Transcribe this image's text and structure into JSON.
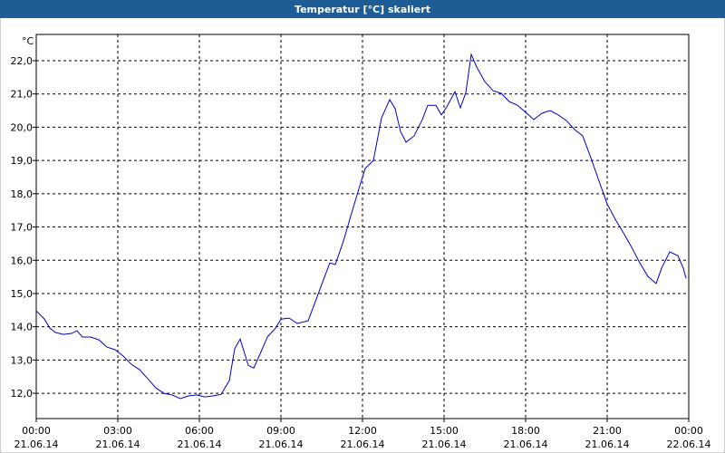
{
  "chart_data": {
    "type": "line",
    "title": "Temperatur [°C] skaliert",
    "y_unit": "°C",
    "x": [
      0,
      0.3,
      0.5,
      0.7,
      1.0,
      1.3,
      1.5,
      1.7,
      2.0,
      2.3,
      2.6,
      2.9,
      3.2,
      3.5,
      3.8,
      4.1,
      4.4,
      4.7,
      5.0,
      5.3,
      5.6,
      5.9,
      6.2,
      6.5,
      6.8,
      7.1,
      7.3,
      7.5,
      7.8,
      8.0,
      8.2,
      8.5,
      8.8,
      9.0,
      9.3,
      9.6,
      10.0,
      10.3,
      10.6,
      10.8,
      11.0,
      11.3,
      11.6,
      11.9,
      12.1,
      12.4,
      12.7,
      13.0,
      13.2,
      13.4,
      13.6,
      13.9,
      14.2,
      14.4,
      14.7,
      14.9,
      15.1,
      15.4,
      15.6,
      15.8,
      16.0,
      16.2,
      16.5,
      16.8,
      17.1,
      17.4,
      17.7,
      18.0,
      18.3,
      18.6,
      18.9,
      19.2,
      19.5,
      19.8,
      20.1,
      20.4,
      20.7,
      21.0,
      21.3,
      21.6,
      21.9,
      22.2,
      22.5,
      22.8,
      23.0,
      23.3,
      23.6,
      23.8,
      23.9
    ],
    "series": [
      {
        "name": "Temperatur",
        "color": "#0000cc",
        "values": [
          14.48,
          14.23,
          13.96,
          13.83,
          13.77,
          13.8,
          13.88,
          13.69,
          13.69,
          13.61,
          13.39,
          13.31,
          13.12,
          12.87,
          12.71,
          12.44,
          12.16,
          12.0,
          11.95,
          11.84,
          11.92,
          11.95,
          11.89,
          11.92,
          11.97,
          12.38,
          13.34,
          13.63,
          12.84,
          12.76,
          13.12,
          13.69,
          13.96,
          14.23,
          14.26,
          14.1,
          14.18,
          14.83,
          15.49,
          15.92,
          15.87,
          16.58,
          17.42,
          18.24,
          18.76,
          19.0,
          20.28,
          20.83,
          20.56,
          19.87,
          19.55,
          19.74,
          20.23,
          20.66,
          20.66,
          20.37,
          20.61,
          21.07,
          20.58,
          21.04,
          22.19,
          21.81,
          21.37,
          21.1,
          21.02,
          20.77,
          20.66,
          20.45,
          20.23,
          20.42,
          20.5,
          20.37,
          20.2,
          19.93,
          19.74,
          19.08,
          18.38,
          17.69,
          17.23,
          16.82,
          16.39,
          15.92,
          15.51,
          15.3,
          15.76,
          16.25,
          16.14,
          15.76,
          15.46
        ]
      }
    ],
    "xlim": [
      0,
      24
    ],
    "xticks": [
      {
        "value": 0,
        "label": "00:00"
      },
      {
        "value": 3,
        "label": "03:00"
      },
      {
        "value": 6,
        "label": "06:00"
      },
      {
        "value": 9,
        "label": "09:00"
      },
      {
        "value": 12,
        "label": "12:00"
      },
      {
        "value": 15,
        "label": "15:00"
      },
      {
        "value": 18,
        "label": "18:00"
      },
      {
        "value": 21,
        "label": "21:00"
      },
      {
        "value": 24,
        "label": "00:00"
      }
    ],
    "xtick_dates": [
      "21.06.14",
      "21.06.14",
      "21.06.14",
      "21.06.14",
      "21.06.14",
      "21.06.14",
      "21.06.14",
      "21.06.14",
      "22.06.14"
    ],
    "ylim": [
      11.24,
      22.79
    ],
    "yticks": [
      {
        "value": 12,
        "label": "12,0"
      },
      {
        "value": 13,
        "label": "13,0"
      },
      {
        "value": 14,
        "label": "14,0"
      },
      {
        "value": 15,
        "label": "15,0"
      },
      {
        "value": 16,
        "label": "16,0"
      },
      {
        "value": 17,
        "label": "17,0"
      },
      {
        "value": 18,
        "label": "18,0"
      },
      {
        "value": 19,
        "label": "19,0"
      },
      {
        "value": 20,
        "label": "20,0"
      },
      {
        "value": 21,
        "label": "21,0"
      },
      {
        "value": 22,
        "label": "22,0"
      }
    ],
    "grid": true
  }
}
